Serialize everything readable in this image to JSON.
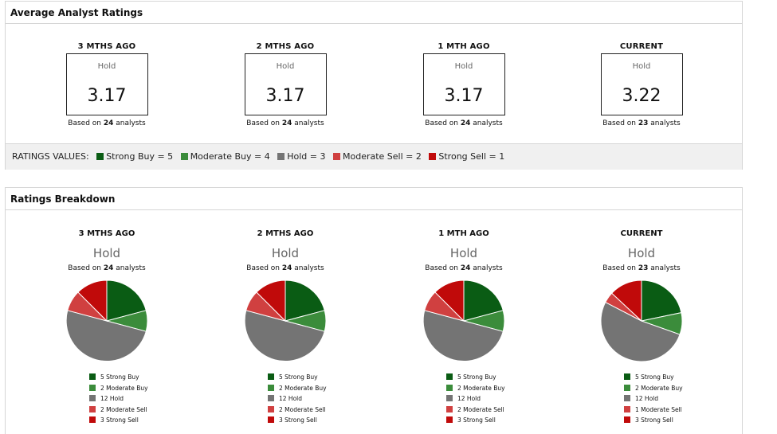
{
  "colors": {
    "strong_buy": "#0a5c14",
    "moderate_buy": "#3b8c3b",
    "hold": "#747474",
    "moderate_sell": "#d04040",
    "strong_sell": "#c00a0a"
  },
  "avg_panel": {
    "title": "Average Analyst Ratings",
    "columns": [
      {
        "head": "3 MTHS AGO",
        "rating": "Hold",
        "value": "3.17",
        "based_prefix": "Based on ",
        "count": "24",
        "based_suffix": " analysts"
      },
      {
        "head": "2 MTHS AGO",
        "rating": "Hold",
        "value": "3.17",
        "based_prefix": "Based on ",
        "count": "24",
        "based_suffix": " analysts"
      },
      {
        "head": "1 MTH AGO",
        "rating": "Hold",
        "value": "3.17",
        "based_prefix": "Based on ",
        "count": "24",
        "based_suffix": " analysts"
      },
      {
        "head": "CURRENT",
        "rating": "Hold",
        "value": "3.22",
        "based_prefix": "Based on ",
        "count": "23",
        "based_suffix": " analysts"
      }
    ],
    "ratings_values": {
      "label": "RATINGS VALUES:",
      "items": [
        "Strong Buy = 5",
        "Moderate Buy = 4",
        "Hold = 3",
        "Moderate Sell = 2",
        "Strong Sell = 1"
      ]
    }
  },
  "breakdown_panel": {
    "title": "Ratings Breakdown",
    "columns": [
      {
        "head": "3 MTHS AGO",
        "rating": "Hold",
        "based_prefix": "Based on ",
        "count": "24",
        "based_suffix": " analysts",
        "legend": [
          "5 Strong Buy",
          "2 Moderate Buy",
          "12 Hold",
          "2 Moderate Sell",
          "3 Strong Sell"
        ]
      },
      {
        "head": "2 MTHS AGO",
        "rating": "Hold",
        "based_prefix": "Based on ",
        "count": "24",
        "based_suffix": " analysts",
        "legend": [
          "5 Strong Buy",
          "2 Moderate Buy",
          "12 Hold",
          "2 Moderate Sell",
          "3 Strong Sell"
        ]
      },
      {
        "head": "1 MTH AGO",
        "rating": "Hold",
        "based_prefix": "Based on ",
        "count": "24",
        "based_suffix": " analysts",
        "legend": [
          "5 Strong Buy",
          "2 Moderate Buy",
          "12 Hold",
          "2 Moderate Sell",
          "3 Strong Sell"
        ]
      },
      {
        "head": "CURRENT",
        "rating": "Hold",
        "based_prefix": "Based on ",
        "count": "23",
        "based_suffix": " analysts",
        "legend": [
          "5 Strong Buy",
          "2 Moderate Buy",
          "12 Hold",
          "1 Moderate Sell",
          "3 Strong Sell"
        ]
      }
    ]
  },
  "chart_data": [
    {
      "type": "pie",
      "categories": [
        "Strong Buy",
        "Moderate Buy",
        "Hold",
        "Moderate Sell",
        "Strong Sell"
      ],
      "values": [
        5,
        2,
        12,
        2,
        3
      ]
    },
    {
      "type": "pie",
      "categories": [
        "Strong Buy",
        "Moderate Buy",
        "Hold",
        "Moderate Sell",
        "Strong Sell"
      ],
      "values": [
        5,
        2,
        12,
        2,
        3
      ]
    },
    {
      "type": "pie",
      "categories": [
        "Strong Buy",
        "Moderate Buy",
        "Hold",
        "Moderate Sell",
        "Strong Sell"
      ],
      "values": [
        5,
        2,
        12,
        2,
        3
      ]
    },
    {
      "type": "pie",
      "categories": [
        "Strong Buy",
        "Moderate Buy",
        "Hold",
        "Moderate Sell",
        "Strong Sell"
      ],
      "values": [
        5,
        2,
        12,
        1,
        3
      ]
    }
  ]
}
